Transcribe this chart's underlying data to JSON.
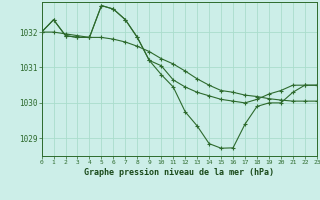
{
  "title": "Graphe pression niveau de la mer (hPa)",
  "bg_color": "#cceee8",
  "line_color": "#2d6a2d",
  "grid_color": "#aaddcc",
  "xlabel_color": "#1a4a1a",
  "ylim": [
    1028.5,
    1032.85
  ],
  "xlim": [
    0,
    23
  ],
  "yticks": [
    1029,
    1030,
    1031,
    1032
  ],
  "xticks": [
    0,
    1,
    2,
    3,
    4,
    5,
    6,
    7,
    8,
    9,
    10,
    11,
    12,
    13,
    14,
    15,
    16,
    17,
    18,
    19,
    20,
    21,
    22,
    23
  ],
  "line1_x": [
    0,
    1,
    2,
    3,
    4,
    5,
    6,
    7,
    8,
    9,
    10,
    11,
    12,
    13,
    14,
    15,
    16,
    17,
    18,
    19,
    20,
    21,
    22,
    23
  ],
  "line1_y": [
    1032.0,
    1032.35,
    1031.9,
    1031.85,
    1031.85,
    1032.75,
    1032.65,
    1032.35,
    1031.85,
    1031.2,
    1031.05,
    1030.65,
    1030.45,
    1030.3,
    1030.2,
    1030.1,
    1030.05,
    1030.0,
    1030.1,
    1030.25,
    1030.35,
    1030.5,
    1030.5,
    1030.5
  ],
  "line2_x": [
    0,
    1,
    2,
    3,
    4,
    5,
    6,
    7,
    8,
    9,
    10,
    11,
    12,
    13,
    14,
    15,
    16,
    17,
    18,
    19,
    20,
    21,
    22,
    23
  ],
  "line2_y": [
    1032.0,
    1032.35,
    1031.9,
    1031.85,
    1031.85,
    1032.75,
    1032.65,
    1032.35,
    1031.85,
    1031.2,
    1030.8,
    1030.45,
    1029.75,
    1029.35,
    1028.85,
    1028.72,
    1028.73,
    1029.4,
    1029.9,
    1030.0,
    1030.0,
    1030.3,
    1030.5,
    1030.5
  ],
  "line3_x": [
    0,
    1,
    2,
    3,
    4,
    5,
    6,
    7,
    8,
    9,
    10,
    11,
    12,
    13,
    14,
    15,
    16,
    17,
    18,
    19,
    20,
    21,
    22,
    23
  ],
  "line3_y": [
    1032.0,
    1032.0,
    1031.95,
    1031.9,
    1031.85,
    1031.85,
    1031.8,
    1031.72,
    1031.6,
    1031.45,
    1031.25,
    1031.1,
    1030.9,
    1030.68,
    1030.5,
    1030.35,
    1030.3,
    1030.22,
    1030.18,
    1030.12,
    1030.08,
    1030.05,
    1030.05,
    1030.05
  ]
}
